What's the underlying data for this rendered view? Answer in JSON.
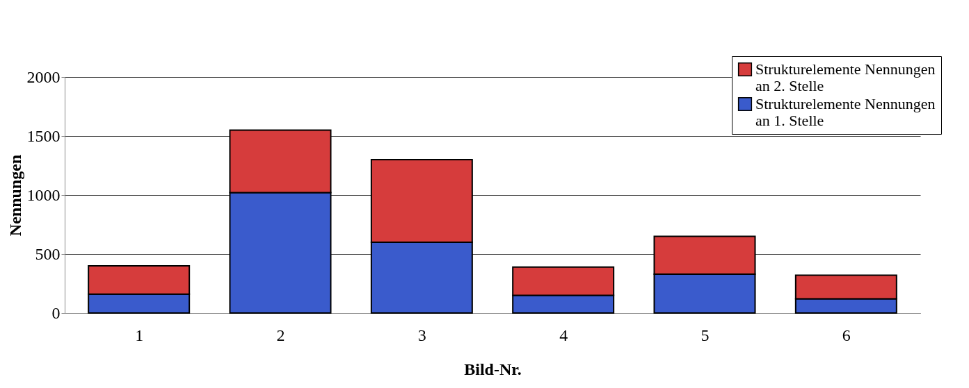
{
  "chart_data": {
    "type": "bar",
    "stacked": true,
    "xlabel": "Bild-Nr.",
    "ylabel": "Nennungen",
    "categories": [
      "1",
      "2",
      "3",
      "4",
      "5",
      "6"
    ],
    "series": [
      {
        "name": "Strukturelemente Nennungen an 1. Stelle",
        "color": "#3a5bcc",
        "values": [
          160,
          1020,
          600,
          150,
          330,
          120
        ]
      },
      {
        "name": "Strukturelemente Nennungen an 2. Stelle",
        "color": "#d63c3c",
        "values": [
          240,
          530,
          700,
          240,
          320,
          200
        ]
      }
    ],
    "ylim": [
      0,
      2000
    ],
    "yticks": [
      0,
      500,
      1000,
      1500,
      2000
    ],
    "grid": "y",
    "legend": "top right"
  }
}
